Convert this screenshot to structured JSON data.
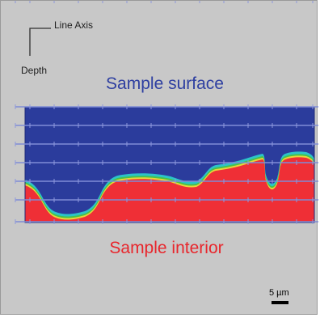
{
  "labels": {
    "line_axis": "Line Axis",
    "depth": "Depth",
    "surface": "Sample surface",
    "interior": "Sample interior",
    "scale": "5 µm"
  },
  "colors": {
    "background": "#c8c8c8",
    "surface_phase": "#2b3c9c",
    "interior_phase": "#ef2f36",
    "transition_green": "#47c24a",
    "transition_cyan": "#2cc4c8",
    "transition_yellow": "#e8d63a",
    "scan_line": "#7f8cd6",
    "surface_text": "#2e3fa1",
    "interior_text": "#e8262c"
  }
}
